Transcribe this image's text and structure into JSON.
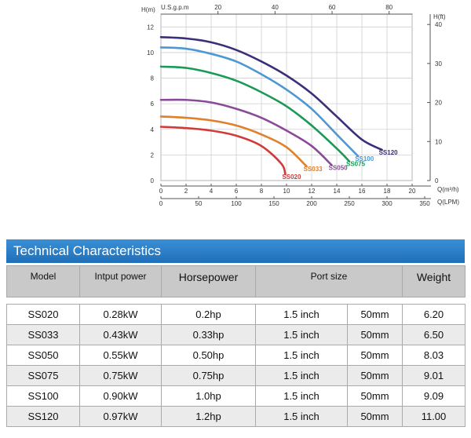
{
  "chart_data": {
    "type": "line",
    "title": "",
    "top_axis": {
      "label": "U.S.g.p.m",
      "ticks": [
        "20",
        "40",
        "60",
        "80"
      ]
    },
    "left_axis": {
      "label": "H(m)",
      "ticks": [
        "0",
        "2",
        "4",
        "6",
        "8",
        "10",
        "12"
      ],
      "ylim": [
        0,
        13
      ]
    },
    "right_axis": {
      "label": "H(ft)",
      "ticks": [
        "0",
        "10",
        "20",
        "30",
        "40"
      ]
    },
    "x_axis_m3h": {
      "label": "Q(m³/h)",
      "ticks": [
        "0",
        "2",
        "4",
        "6",
        "8",
        "10",
        "12",
        "14",
        "16",
        "18",
        "20"
      ],
      "xlim": [
        0,
        20
      ]
    },
    "x_axis_lpm": {
      "label": "Q(LPM)",
      "ticks": [
        "0",
        "50",
        "100",
        "150",
        "200",
        "250",
        "300",
        "350"
      ]
    },
    "series": [
      {
        "name": "SS120",
        "color": "#3b2f7a",
        "points": [
          [
            0,
            11.2
          ],
          [
            2,
            11.1
          ],
          [
            4,
            10.8
          ],
          [
            6,
            10.2
          ],
          [
            8,
            9.3
          ],
          [
            10,
            8.2
          ],
          [
            12,
            6.8
          ],
          [
            14,
            5.0
          ],
          [
            16,
            3.2
          ],
          [
            17.6,
            2.4
          ]
        ]
      },
      {
        "name": "SS100",
        "color": "#4d98d2",
        "points": [
          [
            0,
            10.4
          ],
          [
            2,
            10.3
          ],
          [
            4,
            9.9
          ],
          [
            6,
            9.3
          ],
          [
            8,
            8.3
          ],
          [
            10,
            7.1
          ],
          [
            12,
            5.6
          ],
          [
            14,
            3.6
          ],
          [
            15.7,
            1.9
          ]
        ]
      },
      {
        "name": "SS075",
        "color": "#1a9a56",
        "points": [
          [
            0,
            8.9
          ],
          [
            2,
            8.8
          ],
          [
            4,
            8.4
          ],
          [
            6,
            7.8
          ],
          [
            8,
            6.9
          ],
          [
            10,
            5.8
          ],
          [
            12,
            4.3
          ],
          [
            14,
            2.5
          ],
          [
            15,
            1.5
          ]
        ]
      },
      {
        "name": "SS050",
        "color": "#8a4a99",
        "points": [
          [
            0,
            6.3
          ],
          [
            2,
            6.3
          ],
          [
            4,
            6.1
          ],
          [
            6,
            5.6
          ],
          [
            8,
            4.9
          ],
          [
            10,
            3.9
          ],
          [
            12,
            2.7
          ],
          [
            13.6,
            1.2
          ]
        ]
      },
      {
        "name": "SS033",
        "color": "#e0802a",
        "points": [
          [
            0,
            5.0
          ],
          [
            2,
            4.9
          ],
          [
            4,
            4.7
          ],
          [
            6,
            4.3
          ],
          [
            8,
            3.6
          ],
          [
            10,
            2.6
          ],
          [
            11.6,
            1.1
          ]
        ]
      },
      {
        "name": "SS020",
        "color": "#d23a3a",
        "points": [
          [
            0,
            4.2
          ],
          [
            2,
            4.1
          ],
          [
            4,
            3.9
          ],
          [
            6,
            3.5
          ],
          [
            8,
            2.7
          ],
          [
            9.6,
            1.3
          ],
          [
            9.9,
            0.5
          ]
        ]
      }
    ]
  },
  "section_title": "Technical Characteristics",
  "table": {
    "headers": {
      "model": "Model",
      "input_power": "Intput power",
      "horsepower": "Horsepower",
      "port_size": "Port size",
      "weight": "Weight"
    },
    "rows": [
      {
        "model": "SS020",
        "power": "0.28kW",
        "hp": "0.2hp",
        "port_inch": "1.5 inch",
        "port_mm": "50mm",
        "weight": "6.20"
      },
      {
        "model": "SS033",
        "power": "0.43kW",
        "hp": "0.33hp",
        "port_inch": "1.5 inch",
        "port_mm": "50mm",
        "weight": "6.50"
      },
      {
        "model": "SS050",
        "power": "0.55kW",
        "hp": "0.50hp",
        "port_inch": "1.5 inch",
        "port_mm": "50mm",
        "weight": "8.03"
      },
      {
        "model": "SS075",
        "power": "0.75kW",
        "hp": "0.75hp",
        "port_inch": "1.5 inch",
        "port_mm": "50mm",
        "weight": "9.01"
      },
      {
        "model": "SS100",
        "power": "0.90kW",
        "hp": "1.0hp",
        "port_inch": "1.5 inch",
        "port_mm": "50mm",
        "weight": "9.09"
      },
      {
        "model": "SS120",
        "power": "0.97kW",
        "hp": "1.2hp",
        "port_inch": "1.5 inch",
        "port_mm": "50mm",
        "weight": "11.00"
      }
    ]
  }
}
